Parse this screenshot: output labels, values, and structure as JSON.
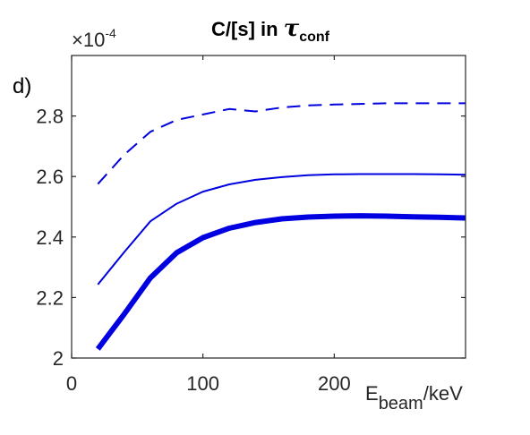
{
  "chart_data": {
    "type": "line",
    "panel_label": "d)",
    "title": {
      "prefix": "C/[s] in ",
      "symbol": "τ",
      "subscript": "conf"
    },
    "xlabel": {
      "main": "E",
      "subscript": "beam",
      "suffix": "/keV"
    },
    "ylabel": "",
    "y_exponent": {
      "base": "×10",
      "power": "-4"
    },
    "xlim": [
      0,
      300
    ],
    "ylim": [
      2.0,
      3.0
    ],
    "xticks": [
      0,
      100,
      200
    ],
    "xtick_labels": [
      "0",
      "100",
      "200"
    ],
    "yticks": [
      2.0,
      2.2,
      2.4,
      2.6,
      2.8
    ],
    "ytick_labels": [
      "2",
      "2.2",
      "2.4",
      "2.6",
      "2.8"
    ],
    "grid": false,
    "series": [
      {
        "style": "dashed",
        "color": "#0000e0",
        "x": [
          20,
          40,
          60,
          80,
          100,
          120,
          140,
          160,
          180,
          200,
          220,
          240,
          260,
          280,
          300
        ],
        "y": [
          2.575,
          2.672,
          2.748,
          2.787,
          2.805,
          2.823,
          2.815,
          2.828,
          2.835,
          2.838,
          2.84,
          2.842,
          2.842,
          2.842,
          2.842
        ]
      },
      {
        "style": "thin",
        "color": "#0000e0",
        "x": [
          20,
          40,
          60,
          80,
          100,
          120,
          140,
          160,
          180,
          200,
          220,
          240,
          260,
          280,
          300
        ],
        "y": [
          2.243,
          2.35,
          2.452,
          2.51,
          2.55,
          2.574,
          2.589,
          2.598,
          2.604,
          2.607,
          2.608,
          2.608,
          2.608,
          2.607,
          2.606
        ]
      },
      {
        "style": "thick",
        "color": "#0000e0",
        "x": [
          20,
          40,
          60,
          80,
          100,
          120,
          140,
          160,
          180,
          200,
          220,
          240,
          260,
          280,
          300
        ],
        "y": [
          2.03,
          2.145,
          2.265,
          2.348,
          2.398,
          2.429,
          2.448,
          2.46,
          2.466,
          2.469,
          2.47,
          2.469,
          2.467,
          2.465,
          2.463
        ]
      }
    ]
  }
}
